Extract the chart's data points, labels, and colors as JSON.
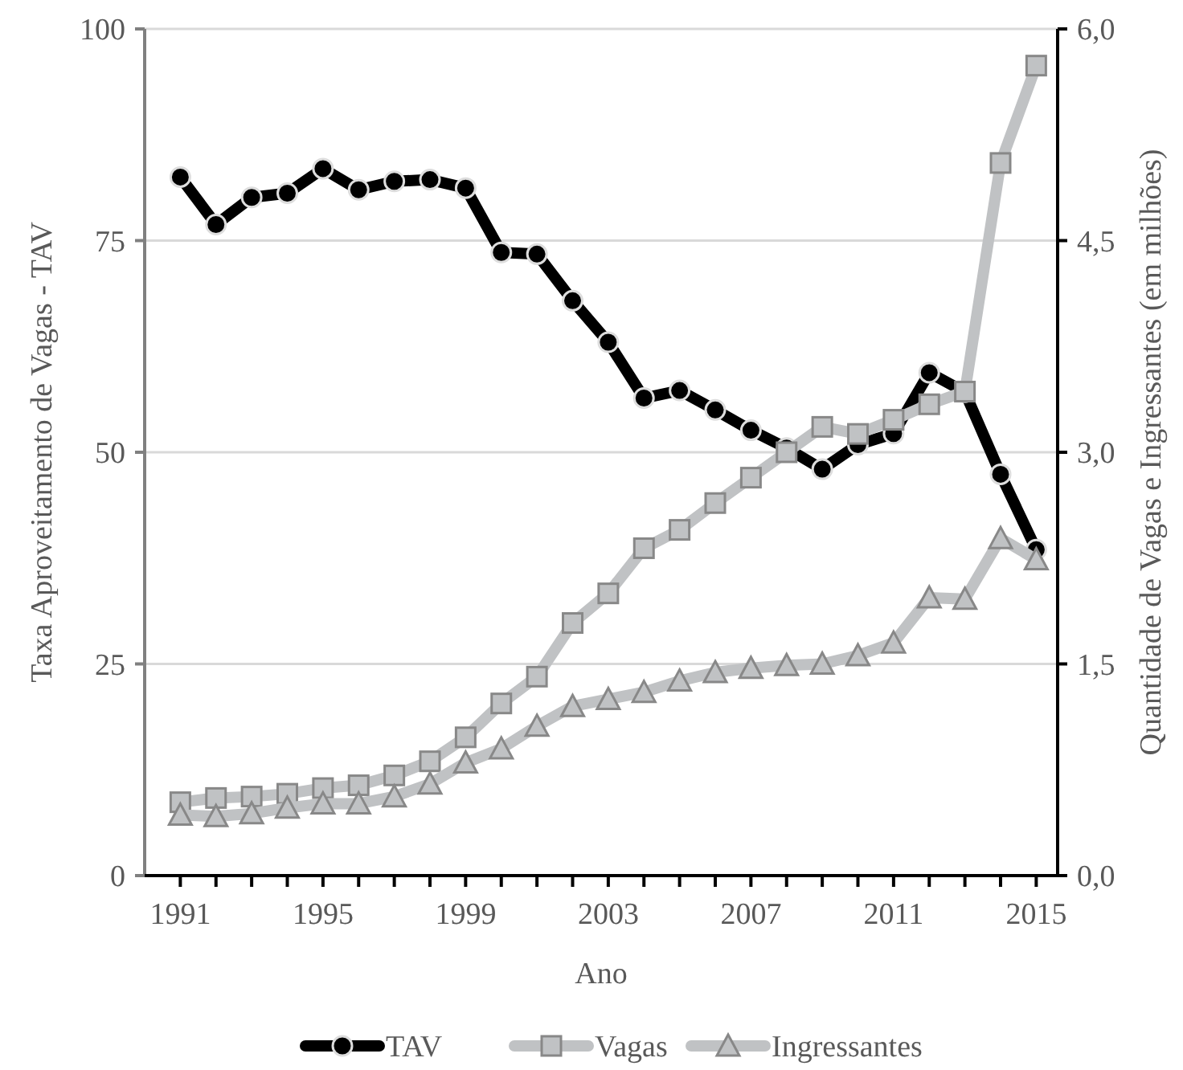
{
  "chart_data": {
    "type": "line",
    "xlabel": "Ano",
    "ylabel": "Taxa Aproveitamento de Vagas - TAV",
    "y2label": "Quantidade de Vagas e Ingressantes (em milhões)",
    "x": [
      1991,
      1992,
      1993,
      1994,
      1995,
      1996,
      1997,
      1998,
      1999,
      2000,
      2001,
      2002,
      2003,
      2004,
      2005,
      2006,
      2007,
      2008,
      2009,
      2010,
      2011,
      2012,
      2013,
      2014,
      2015
    ],
    "series": [
      {
        "name": "TAV",
        "color": "#000000",
        "marker": "circle",
        "values": [
          82.5,
          76.9,
          80.1,
          80.6,
          83.5,
          81.0,
          82.0,
          82.2,
          81.2,
          73.6,
          73.4,
          67.9,
          63.0,
          56.4,
          57.3,
          55.0,
          52.6,
          50.5,
          48.0,
          50.9,
          52.2,
          59.4,
          57.1,
          47.4,
          38.5
        ]
      },
      {
        "name": "Vagas",
        "color": "#c0c2c4",
        "marker": "square",
        "axis": "y2",
        "values": [
          0.52,
          0.55,
          0.56,
          0.58,
          0.62,
          0.64,
          0.71,
          0.81,
          0.98,
          1.22,
          1.41,
          1.79,
          2.0,
          2.32,
          2.45,
          2.64,
          2.82,
          3.0,
          3.18,
          3.13,
          3.23,
          3.34,
          3.43,
          5.05,
          5.74
        ]
      },
      {
        "name": "Ingressantes",
        "color": "#c0c2c4",
        "marker": "triangle",
        "axis": "y2",
        "values": [
          0.43,
          0.42,
          0.44,
          0.48,
          0.51,
          0.51,
          0.56,
          0.65,
          0.8,
          0.9,
          1.06,
          1.2,
          1.25,
          1.3,
          1.38,
          1.44,
          1.47,
          1.49,
          1.5,
          1.56,
          1.65,
          1.97,
          1.96,
          2.39,
          2.24
        ]
      }
    ],
    "xlim": [
      1990,
      2015.6
    ],
    "xticks": [
      1991,
      {
        "value": 1992,
        "label": null
      },
      {
        "value": 1993,
        "label": null
      },
      {
        "value": 1994,
        "label": null
      },
      1995,
      {
        "value": 1996,
        "label": null
      },
      {
        "value": 1997,
        "label": null
      },
      {
        "value": 1998,
        "label": null
      },
      1999,
      {
        "value": 2000,
        "label": null
      },
      {
        "value": 2001,
        "label": null
      },
      {
        "value": 2002,
        "label": null
      },
      2003,
      {
        "value": 2004,
        "label": null
      },
      {
        "value": 2005,
        "label": null
      },
      {
        "value": 2006,
        "label": null
      },
      2007,
      {
        "value": 2008,
        "label": null
      },
      {
        "value": 2009,
        "label": null
      },
      {
        "value": 2010,
        "label": null
      },
      2011,
      {
        "value": 2012,
        "label": null
      },
      {
        "value": 2013,
        "label": null
      },
      {
        "value": 2014,
        "label": null
      },
      2015
    ],
    "ylim": [
      0,
      100
    ],
    "yticks": [
      0,
      25,
      50,
      75,
      100
    ],
    "y2lim": [
      0,
      6
    ],
    "y2ticks": [
      {
        "value": 0,
        "label": "0,0"
      },
      {
        "value": 1.5,
        "label": "1,5"
      },
      {
        "value": 3,
        "label": "3,0"
      },
      {
        "value": 4.5,
        "label": "4,5"
      },
      {
        "value": 6,
        "label": "6,0"
      }
    ],
    "grid": "y",
    "legend": "bottom",
    "line_style": "solid"
  }
}
